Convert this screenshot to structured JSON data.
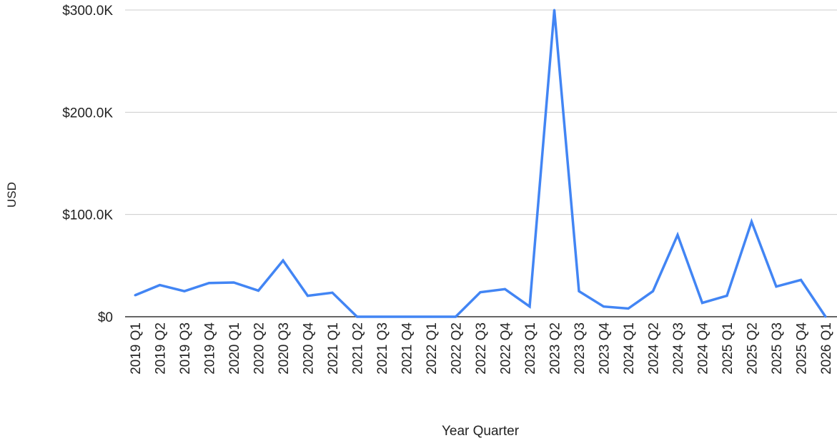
{
  "chart_data": {
    "type": "line",
    "title": "",
    "xlabel": "Year Quarter",
    "ylabel": "USD",
    "ylim": [
      0,
      300000
    ],
    "y_ticks": [
      {
        "value": 0,
        "label": "$0"
      },
      {
        "value": 100000,
        "label": "$100.0K"
      },
      {
        "value": 200000,
        "label": "$200.0K"
      },
      {
        "value": 300000,
        "label": "$300.0K"
      }
    ],
    "grid": true,
    "legend": "none",
    "series_color": "#4285f4",
    "categories": [
      "2019 Q1",
      "2019 Q2",
      "2019 Q3",
      "2019 Q4",
      "2020 Q1",
      "2020 Q2",
      "2020 Q3",
      "2020 Q4",
      "2021 Q1",
      "2021 Q2",
      "2021 Q3",
      "2021 Q4",
      "2022 Q1",
      "2022 Q2",
      "2022 Q3",
      "2022 Q4",
      "2023 Q1",
      "2023 Q2",
      "2023 Q3",
      "2023 Q4",
      "2024 Q1",
      "2024 Q2",
      "2024 Q3",
      "2024 Q4",
      "2025 Q1",
      "2025 Q2",
      "2025 Q3",
      "2025 Q4",
      "2026 Q1"
    ],
    "series": [
      {
        "values": [
          21000,
          31000,
          25000,
          33000,
          33500,
          25500,
          55000,
          20500,
          23500,
          0,
          0,
          0,
          0,
          0,
          24000,
          27000,
          10000,
          300000,
          25000,
          10000,
          8000,
          25000,
          80000,
          13500,
          20500,
          93000,
          29500,
          36000,
          0
        ]
      }
    ]
  }
}
